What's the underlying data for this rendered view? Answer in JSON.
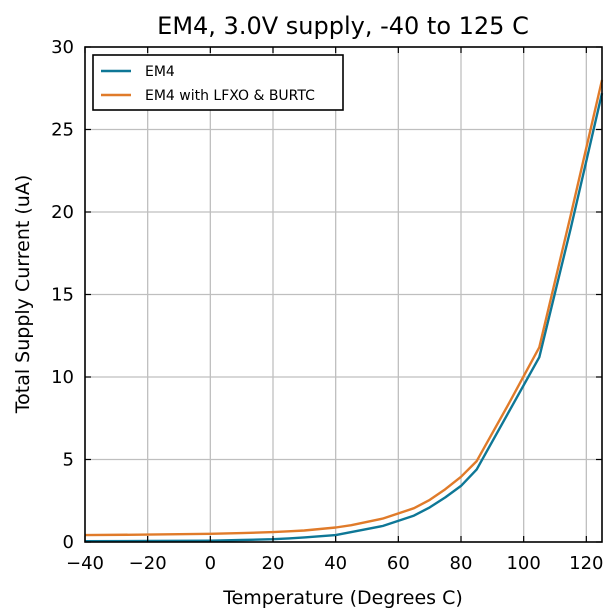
{
  "chart_data": {
    "type": "line",
    "title": "EM4, 3.0V supply, -40 to 125 C",
    "xlabel": "Temperature (Degrees C)",
    "ylabel": "Total Supply Current (uA)",
    "xlim": [
      -40,
      125
    ],
    "ylim": [
      0,
      30
    ],
    "xticks": [
      -40,
      -20,
      0,
      20,
      40,
      60,
      80,
      100,
      120
    ],
    "yticks": [
      0,
      5,
      10,
      15,
      20,
      25,
      30
    ],
    "xtick_labels": [
      "−40",
      "−20",
      "0",
      "20",
      "40",
      "60",
      "80",
      "100",
      "120"
    ],
    "ytick_labels": [
      "0",
      "5",
      "10",
      "15",
      "20",
      "25",
      "30"
    ],
    "grid": true,
    "legend_position": "top-left",
    "series": [
      {
        "name": "EM4",
        "color": "#0e7796",
        "x": [
          -40,
          -20,
          0,
          10,
          20,
          25,
          30,
          40,
          45,
          55,
          65,
          70,
          75,
          80,
          85,
          95,
          105,
          115,
          125
        ],
        "y": [
          0.05,
          0.06,
          0.08,
          0.12,
          0.17,
          0.22,
          0.28,
          0.42,
          0.6,
          0.97,
          1.6,
          2.1,
          2.7,
          3.4,
          4.4,
          7.8,
          11.2,
          19.0,
          27.2
        ]
      },
      {
        "name": "EM4 with LFXO & BURTC",
        "color": "#e07b2a",
        "x": [
          -40,
          -20,
          0,
          10,
          20,
          25,
          30,
          40,
          45,
          55,
          65,
          70,
          75,
          80,
          85,
          95,
          105,
          115,
          125
        ],
        "y": [
          0.42,
          0.45,
          0.5,
          0.54,
          0.6,
          0.65,
          0.7,
          0.88,
          1.02,
          1.42,
          2.05,
          2.55,
          3.2,
          3.95,
          4.9,
          8.3,
          11.8,
          19.8,
          28.0
        ]
      }
    ]
  }
}
